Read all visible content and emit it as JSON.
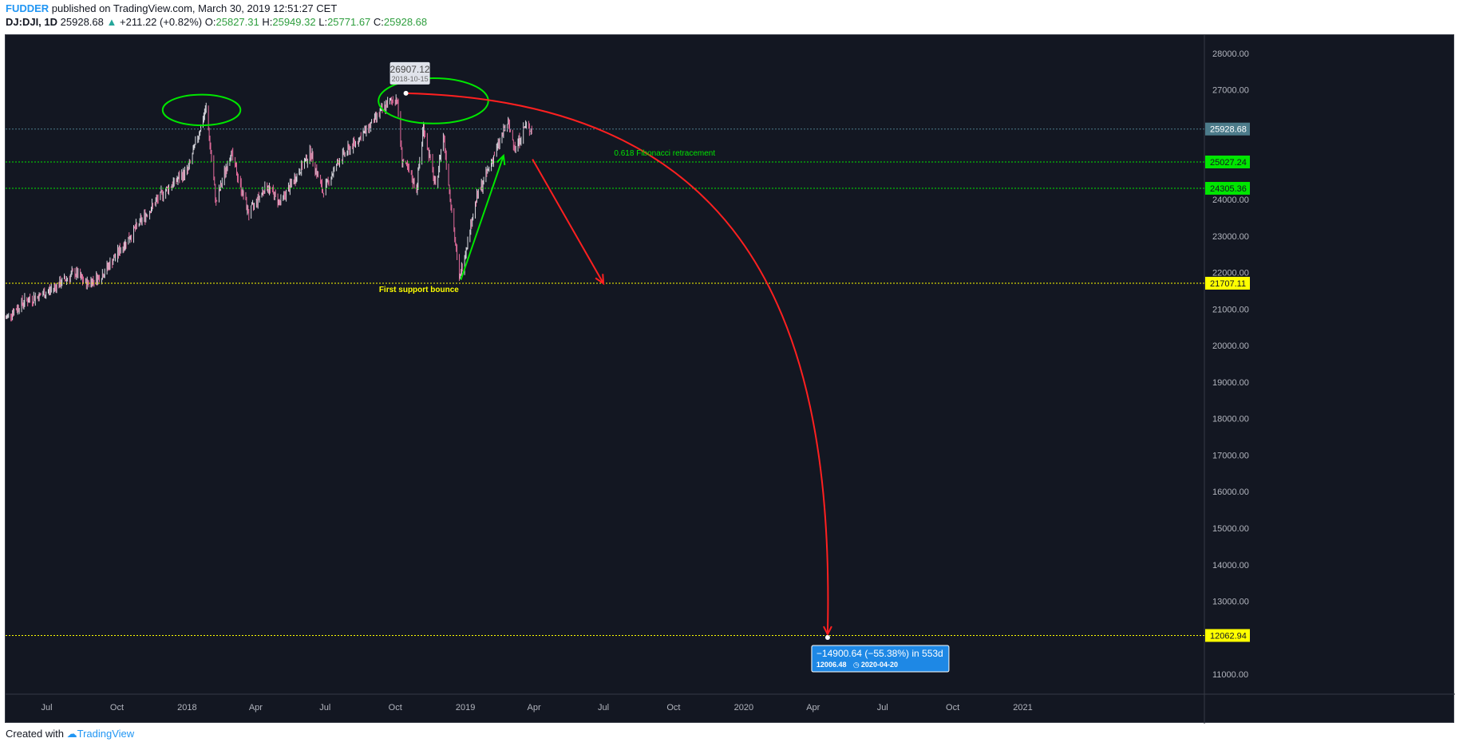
{
  "header": {
    "author": "FUDDER",
    "published_text": "published on TradingView.com, March 30, 2019 12:51:27 CET",
    "symbol": "DJ:DJI, 1D",
    "last": "25928.68",
    "change": "+211.22 (+0.82%)",
    "o_label": "O:",
    "o": "25827.31",
    "h_label": "H:",
    "h": "25949.32",
    "l_label": "L:",
    "l": "25771.67",
    "c_label": "C:",
    "c": "25928.68"
  },
  "footer": {
    "created_with": "Created with",
    "brand": "TradingView"
  },
  "colors": {
    "background": "#131722",
    "fib_green": "#00e600",
    "support_yellow": "#ffff00",
    "projection_red": "#ff2020",
    "price_label": "#4c7b8a",
    "measure_blue": "#1e88e5"
  },
  "chart_data": {
    "type": "candlestick",
    "symbol": "DJ:DJI",
    "interval": "1D",
    "ylim": [
      10500,
      28500
    ],
    "y_ticks": [
      11000,
      12000,
      13000,
      14000,
      15000,
      16000,
      17000,
      18000,
      19000,
      20000,
      21000,
      22000,
      23000,
      24000,
      25000,
      26000,
      27000,
      28000
    ],
    "y_tick_labels": [
      "11000.00",
      "12000.00",
      "13000.00",
      "14000.00",
      "15000.00",
      "16000.00",
      "17000.00",
      "18000.00",
      "19000.00",
      "20000.00",
      "21000.00",
      "22000.00",
      "23000.00",
      "24000.00",
      "25000.00",
      "26000.00",
      "27000.00",
      "28000.00"
    ],
    "x_range": [
      "2017-05-08",
      "2021-08-25"
    ],
    "x_ticks": [
      {
        "date": "2017-07-01",
        "label": "Jul"
      },
      {
        "date": "2017-10-01",
        "label": "Oct"
      },
      {
        "date": "2018-01-01",
        "label": "2018"
      },
      {
        "date": "2018-04-01",
        "label": "Apr"
      },
      {
        "date": "2018-07-01",
        "label": "Jul"
      },
      {
        "date": "2018-10-01",
        "label": "Oct"
      },
      {
        "date": "2019-01-01",
        "label": "2019"
      },
      {
        "date": "2019-04-01",
        "label": "Apr"
      },
      {
        "date": "2019-07-01",
        "label": "Jul"
      },
      {
        "date": "2019-10-01",
        "label": "Oct"
      },
      {
        "date": "2020-01-01",
        "label": "2020"
      },
      {
        "date": "2020-04-01",
        "label": "Apr"
      },
      {
        "date": "2020-07-01",
        "label": "Jul"
      },
      {
        "date": "2020-10-01",
        "label": "Oct"
      },
      {
        "date": "2021-01-01",
        "label": "2021"
      }
    ],
    "price_path": [
      [
        "2017-05-08",
        20750
      ],
      [
        "2017-06-01",
        21200
      ],
      [
        "2017-07-01",
        21450
      ],
      [
        "2017-08-07",
        22000
      ],
      [
        "2017-08-21",
        21700
      ],
      [
        "2017-09-10",
        21900
      ],
      [
        "2017-10-01",
        22500
      ],
      [
        "2017-11-01",
        23400
      ],
      [
        "2017-12-01",
        24200
      ],
      [
        "2018-01-02",
        24800
      ],
      [
        "2018-01-26",
        26500
      ],
      [
        "2018-02-08",
        23900
      ],
      [
        "2018-02-27",
        25300
      ],
      [
        "2018-03-23",
        23600
      ],
      [
        "2018-04-15",
        24400
      ],
      [
        "2018-05-03",
        23900
      ],
      [
        "2018-06-12",
        25300
      ],
      [
        "2018-06-28",
        24200
      ],
      [
        "2018-07-20",
        25100
      ],
      [
        "2018-08-20",
        25800
      ],
      [
        "2018-09-20",
        26600
      ],
      [
        "2018-10-03",
        26800
      ],
      [
        "2018-10-10",
        25100
      ],
      [
        "2018-10-29",
        24300
      ],
      [
        "2018-11-07",
        26000
      ],
      [
        "2018-11-23",
        24300
      ],
      [
        "2018-12-03",
        25800
      ],
      [
        "2018-12-24",
        21800
      ],
      [
        "2019-01-15",
        24000
      ],
      [
        "2019-02-25",
        26100
      ],
      [
        "2019-03-08",
        25400
      ],
      [
        "2019-03-20",
        26000
      ],
      [
        "2019-03-29",
        25928
      ]
    ],
    "horizontal_levels": [
      {
        "price": 25928.68,
        "label": "25928.68",
        "kind": "last_price"
      },
      {
        "price": 25027.24,
        "label": "25027.24",
        "kind": "fibonacci"
      },
      {
        "price": 24305.36,
        "label": "24305.36",
        "kind": "fibonacci"
      },
      {
        "price": 21707.11,
        "label": "21707.11",
        "kind": "support"
      },
      {
        "price": 12062.94,
        "label": "12062.94",
        "kind": "target"
      }
    ],
    "annotations": {
      "fib_text": "0.618 Fibonacci retracement",
      "support_text": "First support bounce",
      "peak_price": "26907.12",
      "peak_date": "2018-10-15",
      "measure_main": "−14900.64 (−55.38%) in 553d",
      "measure_sub": "12006.48",
      "measure_date": "2020-04-20"
    },
    "peak_point": {
      "date": "2018-10-15",
      "price": 26907
    },
    "target_point": {
      "date": "2020-04-20",
      "price": 12006
    },
    "green_arrow": {
      "from": {
        "date": "2018-12-26",
        "price": 21800
      },
      "to": {
        "date": "2019-02-20",
        "price": 25200
      }
    },
    "red_arrow_short": {
      "from": {
        "date": "2019-03-30",
        "price": 25100
      },
      "to": {
        "date": "2019-07-01",
        "price": 21700
      }
    },
    "ellipses": [
      {
        "center_date": "2018-01-20",
        "center_price": 26450,
        "rx_days": 51,
        "ry_price": 420
      },
      {
        "center_date": "2018-11-20",
        "center_price": 26700,
        "rx_days": 72,
        "ry_price": 620
      }
    ]
  }
}
